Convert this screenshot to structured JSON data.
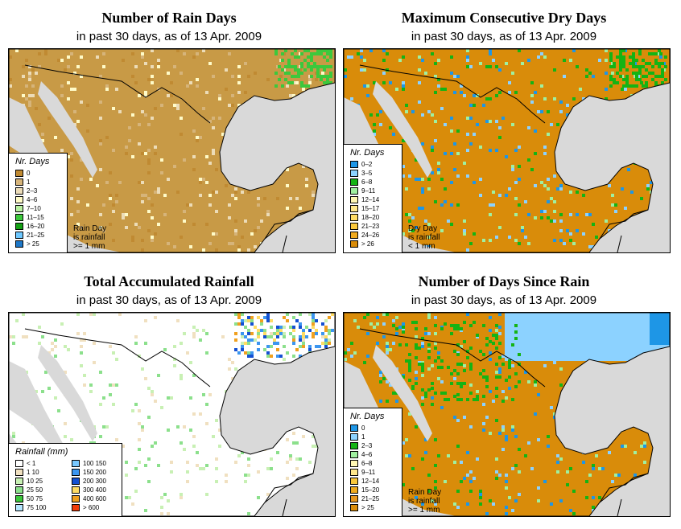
{
  "panels": [
    {
      "title": "Number of Rain Days",
      "subtitle": "in past 30 days, as of  13 Apr. 2009",
      "legend_title": "Nr. Days",
      "note": [
        "Rain Day",
        "is rainfall",
        ">= 1 mm"
      ],
      "land_color": "#c89a46",
      "legend": [
        {
          "label": "0",
          "color": "#c08a32"
        },
        {
          "label": "1",
          "color": "#d6b47a"
        },
        {
          "label": "2–3",
          "color": "#ecdcb8"
        },
        {
          "label": "4–6",
          "color": "#fffbc8"
        },
        {
          "label": "7–10",
          "color": "#b8f0a0"
        },
        {
          "label": "11–15",
          "color": "#3cc83c"
        },
        {
          "label": "16–20",
          "color": "#14a014"
        },
        {
          "label": "21–25",
          "color": "#6ec8ff"
        },
        {
          "label": "> 25",
          "color": "#1e78c8"
        }
      ]
    },
    {
      "title": "Maximum Consecutive Dry Days",
      "subtitle": "in past 30 days, as of  13 Apr. 2009",
      "legend_title": "Nr. Days",
      "note": [
        "Dry Day",
        "is rainfall",
        "< 1 mm"
      ],
      "land_color": "#d98c0a",
      "legend": [
        {
          "label": "0–2",
          "color": "#1e96e6"
        },
        {
          "label": "3–5",
          "color": "#8cd2ff"
        },
        {
          "label": "6–8",
          "color": "#14b414"
        },
        {
          "label": "9–11",
          "color": "#a0f0a0"
        },
        {
          "label": "12–14",
          "color": "#fff8b4"
        },
        {
          "label": "15–17",
          "color": "#ffe88c"
        },
        {
          "label": "18–20",
          "color": "#ffdc64"
        },
        {
          "label": "21–23",
          "color": "#fac83c"
        },
        {
          "label": "24–26",
          "color": "#f0aa1e"
        },
        {
          "label": "> 26",
          "color": "#d98c0a"
        }
      ]
    },
    {
      "title": "Total Accumulated Rainfall",
      "subtitle": "in past 30 days, as of  13 Apr. 2009",
      "legend_title": "Rainfall (mm)",
      "note": [],
      "land_color": "#ffffff",
      "legend": [
        {
          "label": "< 1",
          "color": "#ffffff"
        },
        {
          "label": "1    10",
          "color": "#f0e0c0"
        },
        {
          "label": "10    25",
          "color": "#c8f0b4"
        },
        {
          "label": "25    50",
          "color": "#8ce08c"
        },
        {
          "label": "50    75",
          "color": "#3cc83c"
        },
        {
          "label": "75    100",
          "color": "#b4e6ff"
        },
        {
          "label": "100    150",
          "color": "#78c8ff"
        },
        {
          "label": "150    200",
          "color": "#3c96f0"
        },
        {
          "label": "200    300",
          "color": "#1450d2"
        },
        {
          "label": "300    400",
          "color": "#ffdc64"
        },
        {
          "label": "400    600",
          "color": "#f0a01e"
        },
        {
          "label": "> 600",
          "color": "#f03c0a"
        }
      ]
    },
    {
      "title": "Number of Days Since Rain",
      "subtitle": "in past 30 days, as of  13 Apr. 2009",
      "legend_title": "Nr. Days",
      "note": [
        "Rain Day",
        "is rainfall",
        ">= 1 mm"
      ],
      "land_color": "#d98c0a",
      "legend": [
        {
          "label": "0",
          "color": "#1e96e6"
        },
        {
          "label": "1",
          "color": "#8cd2ff"
        },
        {
          "label": "2–3",
          "color": "#14b414"
        },
        {
          "label": "4–6",
          "color": "#a0f0a0"
        },
        {
          "label": "6–8",
          "color": "#fff8b4"
        },
        {
          "label": "9–11",
          "color": "#ffe88c"
        },
        {
          "label": "12–14",
          "color": "#fac83c"
        },
        {
          "label": "15–20",
          "color": "#f0aa1e"
        },
        {
          "label": "21–25",
          "color": "#e6961e"
        },
        {
          "label": "> 25",
          "color": "#d98c0a"
        }
      ]
    }
  ],
  "colors": {
    "ocean": "#d9d9d9",
    "border": "#000000"
  }
}
